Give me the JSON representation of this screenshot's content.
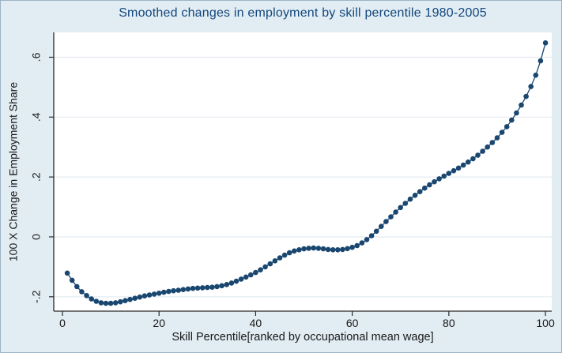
{
  "figure": {
    "background_color": "#e1ecf3",
    "plot_background_color": "#ffffff",
    "title_color": "#13477d",
    "marker_color": "#1a476f",
    "axis_color": "#2b2b2b",
    "grid_color": "#e4ecf2",
    "tick_text_color": "#1a1a1a"
  },
  "chart_data": {
    "type": "line",
    "title": "Smoothed changes in employment by skill percentile 1980-2005",
    "xlabel": "Skill Percentile[ranked by occupational mean wage]",
    "ylabel": "100 X Change in Employment Share",
    "legend": "none",
    "grid": "horizontal",
    "marker": "filled-circle",
    "x_ticks": [
      0,
      20,
      40,
      60,
      80,
      100
    ],
    "x_tick_labels": [
      "0",
      "20",
      "40",
      "60",
      "80",
      "100"
    ],
    "y_ticks": [
      -0.2,
      0,
      0.2,
      0.4,
      0.6
    ],
    "y_tick_labels": [
      "-.2",
      "0",
      ".2",
      ".4",
      ".6"
    ],
    "xlim": [
      -1.8,
      101.3
    ],
    "ylim": [
      -0.248,
      0.683
    ],
    "x": [
      1,
      2,
      3,
      4,
      5,
      6,
      7,
      8,
      9,
      10,
      11,
      12,
      13,
      14,
      15,
      16,
      17,
      18,
      19,
      20,
      21,
      22,
      23,
      24,
      25,
      26,
      27,
      28,
      29,
      30,
      31,
      32,
      33,
      34,
      35,
      36,
      37,
      38,
      39,
      40,
      41,
      42,
      43,
      44,
      45,
      46,
      47,
      48,
      49,
      50,
      51,
      52,
      53,
      54,
      55,
      56,
      57,
      58,
      59,
      60,
      61,
      62,
      63,
      64,
      65,
      66,
      67,
      68,
      69,
      70,
      71,
      72,
      73,
      74,
      75,
      76,
      77,
      78,
      79,
      80,
      81,
      82,
      83,
      84,
      85,
      86,
      87,
      88,
      89,
      90,
      91,
      92,
      93,
      94,
      95,
      96,
      97,
      98,
      99,
      100
    ],
    "y": [
      -0.121,
      -0.145,
      -0.166,
      -0.183,
      -0.196,
      -0.207,
      -0.215,
      -0.22,
      -0.222,
      -0.222,
      -0.22,
      -0.217,
      -0.213,
      -0.209,
      -0.205,
      -0.201,
      -0.197,
      -0.194,
      -0.191,
      -0.188,
      -0.185,
      -0.182,
      -0.18,
      -0.178,
      -0.176,
      -0.174,
      -0.172,
      -0.171,
      -0.17,
      -0.169,
      -0.168,
      -0.166,
      -0.163,
      -0.159,
      -0.154,
      -0.148,
      -0.141,
      -0.134,
      -0.127,
      -0.119,
      -0.11,
      -0.1,
      -0.09,
      -0.08,
      -0.07,
      -0.061,
      -0.053,
      -0.047,
      -0.043,
      -0.04,
      -0.038,
      -0.037,
      -0.038,
      -0.04,
      -0.042,
      -0.043,
      -0.043,
      -0.042,
      -0.039,
      -0.035,
      -0.029,
      -0.02,
      -0.009,
      0.004,
      0.019,
      0.035,
      0.051,
      0.067,
      0.083,
      0.098,
      0.112,
      0.126,
      0.139,
      0.151,
      0.163,
      0.174,
      0.184,
      0.194,
      0.203,
      0.212,
      0.221,
      0.23,
      0.24,
      0.25,
      0.261,
      0.273,
      0.286,
      0.3,
      0.315,
      0.331,
      0.349,
      0.368,
      0.39,
      0.414,
      0.44,
      0.469,
      0.502,
      0.54,
      0.588,
      0.648
    ]
  }
}
